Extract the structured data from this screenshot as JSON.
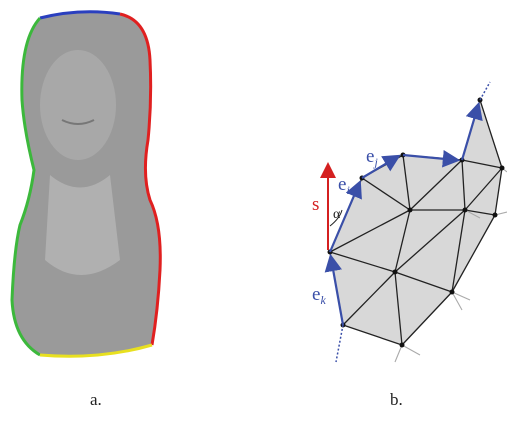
{
  "figure": {
    "panels": [
      {
        "label": "a."
      },
      {
        "label": "b."
      }
    ],
    "diagram_labels": {
      "s": "s",
      "alpha": "α",
      "e_i": {
        "base": "e",
        "sub": "i"
      },
      "e_j": {
        "base": "e",
        "sub": "j"
      },
      "e_k": {
        "base": "e",
        "sub": "k"
      }
    }
  }
}
